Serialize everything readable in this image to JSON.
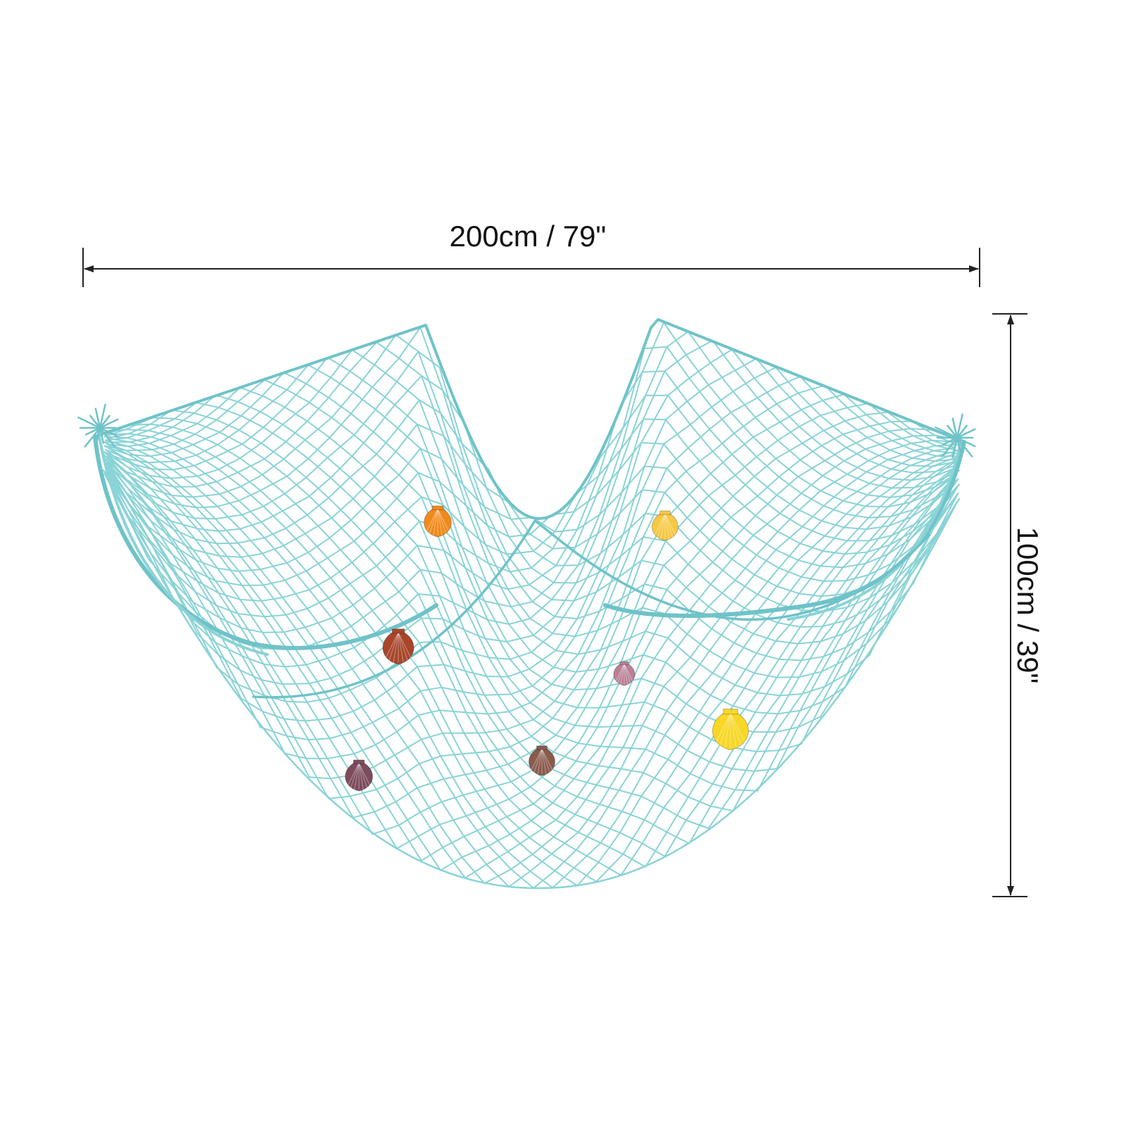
{
  "dimensions": {
    "width_label": "200cm / 79\"",
    "height_label": "100cm / 39\""
  },
  "product": {
    "net_color": "#8ad3d6",
    "net_dark_color": "#6fc3c8",
    "shells": [
      {
        "name": "shell-orange",
        "color": "#f08a1c"
      },
      {
        "name": "shell-yellow-small",
        "color": "#f7c843"
      },
      {
        "name": "shell-red-brown",
        "color": "#a8452a"
      },
      {
        "name": "shell-pink",
        "color": "#b97f96"
      },
      {
        "name": "shell-yellow-large",
        "color": "#f8d727"
      },
      {
        "name": "shell-purple",
        "color": "#7d4b5d"
      },
      {
        "name": "shell-spotted",
        "color": "#8a5a4c"
      }
    ]
  }
}
